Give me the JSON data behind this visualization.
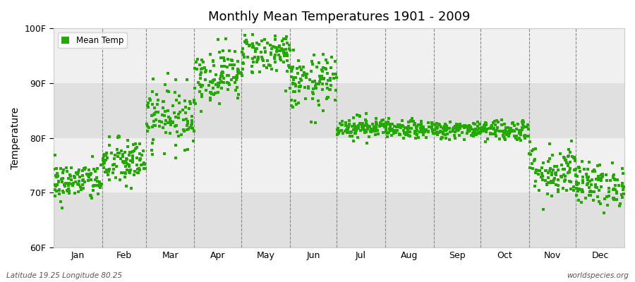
{
  "title": "Monthly Mean Temperatures 1901 - 2009",
  "ylabel": "Temperature",
  "xlabel_months": [
    "Jan",
    "Feb",
    "Mar",
    "Apr",
    "May",
    "Jun",
    "Jul",
    "Aug",
    "Sep",
    "Oct",
    "Nov",
    "Dec"
  ],
  "ylim": [
    60,
    100
  ],
  "yticks": [
    60,
    70,
    80,
    90,
    100
  ],
  "ytick_labels": [
    "60F",
    "70F",
    "80F",
    "90F",
    "100F"
  ],
  "legend_label": "Mean Temp",
  "dot_color": "#22aa00",
  "bg_color": "#ffffff",
  "plot_bg_color": "#f0f0f0",
  "band_color_light": "#f0f0f0",
  "band_color_dark": "#e0e0e0",
  "subtitle_left": "Latitude 19.25 Longitude 80.25",
  "subtitle_right": "worldspecies.org",
  "monthly_means": [
    72.0,
    75.5,
    84.0,
    91.5,
    95.5,
    90.0,
    82.0,
    81.5,
    81.5,
    81.5,
    74.0,
    71.5
  ],
  "monthly_stds": [
    1.8,
    2.2,
    2.8,
    2.5,
    2.0,
    2.5,
    1.0,
    0.8,
    0.8,
    1.0,
    2.5,
    2.0
  ],
  "n_years": 109,
  "seed": 42,
  "days_in_month": [
    31,
    28,
    31,
    30,
    31,
    30,
    31,
    31,
    30,
    31,
    30,
    31
  ]
}
